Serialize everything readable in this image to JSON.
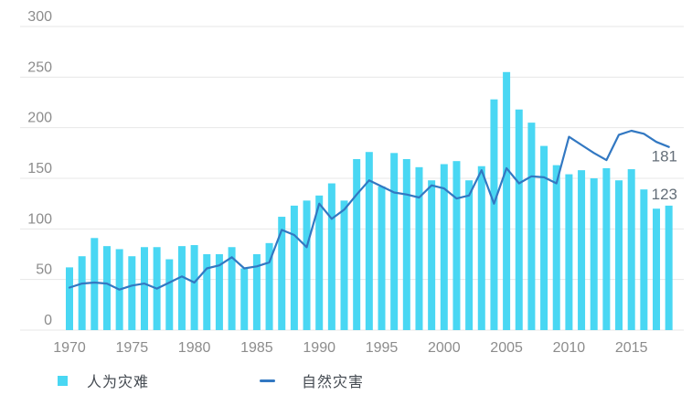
{
  "chart_data": {
    "type": "combo",
    "title": "",
    "categories": [
      1970,
      1971,
      1972,
      1973,
      1974,
      1975,
      1976,
      1977,
      1978,
      1979,
      1980,
      1981,
      1982,
      1983,
      1984,
      1985,
      1986,
      1987,
      1988,
      1989,
      1990,
      1991,
      1992,
      1993,
      1994,
      1995,
      1996,
      1997,
      1998,
      1999,
      2000,
      2001,
      2002,
      2003,
      2004,
      2005,
      2006,
      2007,
      2008,
      2009,
      2010,
      2011,
      2012,
      2013,
      2014,
      2015,
      2016,
      2017,
      2018
    ],
    "series": [
      {
        "name": "人为灾难",
        "type": "bar",
        "color": "#49d7f3",
        "values": [
          62,
          73,
          91,
          83,
          80,
          73,
          82,
          82,
          70,
          83,
          84,
          75,
          75,
          82,
          61,
          75,
          86,
          112,
          123,
          128,
          133,
          145,
          128,
          169,
          176,
          142,
          175,
          169,
          161,
          148,
          164,
          167,
          148,
          162,
          228,
          255,
          218,
          205,
          182,
          163,
          154,
          158,
          150,
          160,
          148,
          159,
          139,
          120,
          123
        ]
      },
      {
        "name": "自然灾害",
        "type": "line",
        "color": "#3278c2",
        "values": [
          42,
          46,
          47,
          46,
          40,
          44,
          46,
          41,
          47,
          53,
          47,
          61,
          64,
          72,
          61,
          63,
          67,
          99,
          94,
          82,
          125,
          110,
          119,
          134,
          148,
          142,
          136,
          134,
          131,
          143,
          140,
          130,
          133,
          158,
          125,
          160,
          145,
          152,
          151,
          145,
          191,
          183,
          175,
          168,
          193,
          197,
          194,
          186,
          181
        ]
      }
    ],
    "x_tick_labels": [
      "1970",
      "1975",
      "1980",
      "1985",
      "1990",
      "1995",
      "2000",
      "2005",
      "2010",
      "2015"
    ],
    "y_ticks": [
      0,
      50,
      100,
      150,
      200,
      250,
      300
    ],
    "ylim": [
      0,
      300
    ],
    "grid": "horizontal",
    "legend_position": "bottom",
    "annotations": [
      {
        "text": "181",
        "series": "自然灾害",
        "year": 2018
      },
      {
        "text": "123",
        "series": "人为灾难",
        "year": 2018
      }
    ]
  },
  "colors": {
    "bar": "#49d7f3",
    "line": "#3278c2",
    "gridline": "#e7e7e7",
    "axis_text": "#8c8c8c",
    "annotation_text": "#646e78",
    "legend_text": "#454b52"
  }
}
